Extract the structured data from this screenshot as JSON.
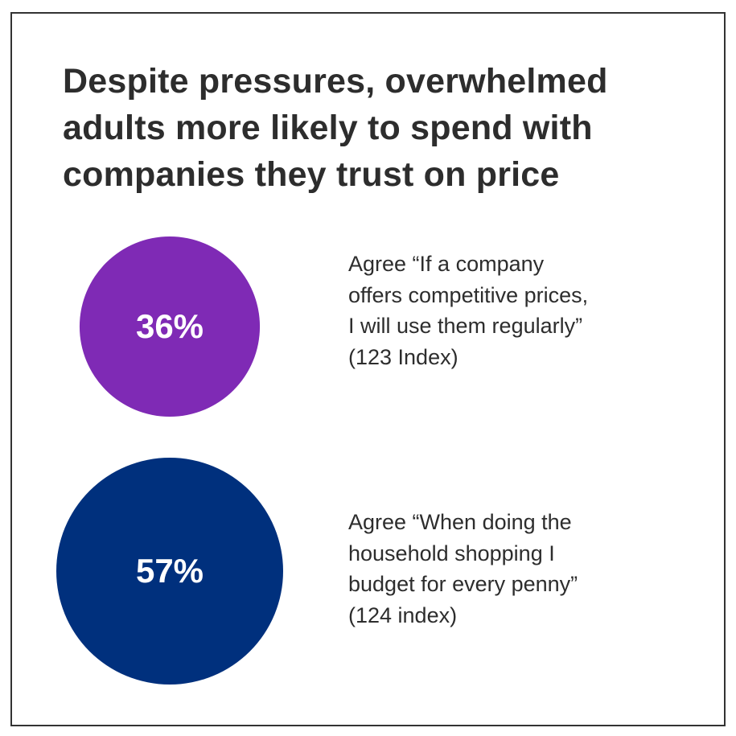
{
  "title_lines": [
    "Despite pressures, overwhelmed",
    "adults more likely to spend with",
    "companies they trust on price"
  ],
  "chart_data": {
    "type": "bubble",
    "items": [
      {
        "value": 36,
        "value_label": "36%",
        "color": "#7F2AB5",
        "label_lines": [
          "Agree “If a company",
          "offers competitive prices,",
          "I will use them regularly”",
          "(123 Index)"
        ]
      },
      {
        "value": 57,
        "value_label": "57%",
        "color": "#00307D",
        "label_lines": [
          "Agree “When doing the",
          "household shopping I",
          "budget for every penny”",
          "(124 index)"
        ]
      }
    ]
  }
}
